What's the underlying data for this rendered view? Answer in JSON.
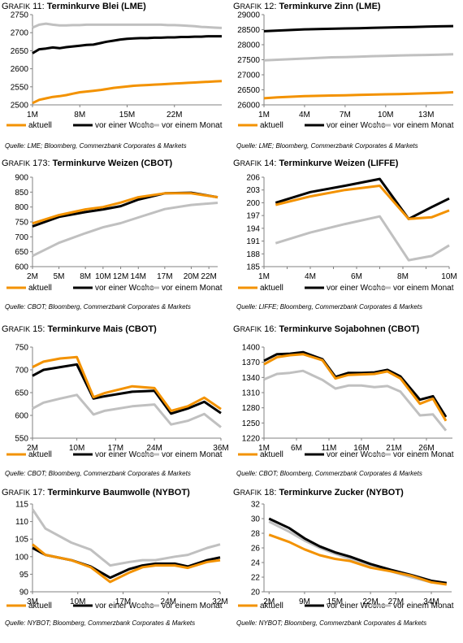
{
  "prefix": "Grafik",
  "legend_labels": [
    "aktuell",
    "vor einer Woche",
    "vor einem Monat"
  ],
  "colors": {
    "aktuell": "#f39200",
    "vor_einer_woche": "#000000",
    "vor_einem_monat": "#c0c0c0",
    "axis": "#808080"
  },
  "panels": [
    {
      "num": "11",
      "title": "Terminkurve Blei (LME)",
      "source": "Quelle: LME; Bloomberg, Commerzbank Corporates & Markets"
    },
    {
      "num": "12",
      "title": "Terminkurve Zinn (LME)",
      "source": "Quelle: LME; Bloomberg, Commerzbank Corporates & Markets"
    },
    {
      "num": "173",
      "title": "Terminkurve Weizen (CBOT)",
      "source": "Quelle: CBOT; Bloomberg, Commerzbank Corporates & Markets"
    },
    {
      "num": "14",
      "title": "Terminkurve Weizen (LIFFE)",
      "source": "Quelle: LIFFE; Bloomberg, Commerzbank Corporates & Markets"
    },
    {
      "num": "15",
      "title": "Terminkurve Mais (CBOT)",
      "source": "Quelle: CBOT; Bloomberg, Commerzbank Corporates & Markets"
    },
    {
      "num": "16",
      "title": "Terminkurve Sojabohnen (CBOT)",
      "source": "Quelle: CBOT; Bloomberg, Commerzbank Corporates & Markets"
    },
    {
      "num": "17",
      "title": "Terminkurve Baumwolle (NYBOT)",
      "source": "Quelle: NYBOT; Bloomberg, Commerzbank Corporates & Markets"
    },
    {
      "num": "18",
      "title": "Terminkurve Zucker (NYBOT)",
      "source": "Quelle: NYBOT; Bloomberg, Commerzbank Corporates & Markets"
    }
  ],
  "chart_data": [
    {
      "type": "line",
      "title": "Terminkurve Blei (LME)",
      "xlim": [
        1,
        29
      ],
      "xticks": [
        1,
        8,
        15,
        22
      ],
      "xticklabels": [
        "1M",
        "8M",
        "15M",
        "22M"
      ],
      "ylim": [
        2500,
        2750
      ],
      "yticks": [
        2500,
        2550,
        2600,
        2650,
        2700,
        2750
      ],
      "series": [
        {
          "name": "aktuell",
          "x": [
            1,
            2,
            3,
            4,
            5,
            6,
            7,
            8,
            9,
            10,
            11,
            12,
            13,
            14,
            15,
            16,
            17,
            18,
            19,
            20,
            21,
            22,
            23,
            24,
            25,
            26,
            27,
            28,
            29
          ],
          "y": [
            2505,
            2514,
            2518,
            2522,
            2524,
            2527,
            2531,
            2535,
            2537,
            2539,
            2541,
            2544,
            2547,
            2549,
            2551,
            2553,
            2554,
            2555,
            2556,
            2557,
            2558,
            2559,
            2560,
            2561,
            2562,
            2563,
            2564,
            2565,
            2566
          ]
        },
        {
          "name": "vor einer Woche",
          "x": [
            1,
            2,
            3,
            4,
            5,
            6,
            7,
            8,
            9,
            10,
            11,
            12,
            13,
            14,
            15,
            16,
            17,
            18,
            19,
            20,
            21,
            22,
            23,
            24,
            25,
            26,
            27,
            28,
            29
          ],
          "y": [
            2643,
            2654,
            2656,
            2659,
            2657,
            2660,
            2662,
            2664,
            2666,
            2667,
            2671,
            2675,
            2678,
            2681,
            2683,
            2684,
            2685,
            2685,
            2686,
            2686,
            2687,
            2687,
            2688,
            2688,
            2689,
            2689,
            2690,
            2690,
            2690
          ]
        },
        {
          "name": "vor einem Monat",
          "x": [
            1,
            2,
            3,
            4,
            5,
            6,
            7,
            8,
            9,
            10,
            11,
            12,
            13,
            14,
            15,
            16,
            17,
            18,
            19,
            20,
            21,
            22,
            23,
            24,
            25,
            26,
            27,
            28,
            29
          ],
          "y": [
            2714,
            2722,
            2725,
            2722,
            2720,
            2720,
            2721,
            2721,
            2722,
            2722,
            2722,
            2722,
            2722,
            2722,
            2722,
            2722,
            2722,
            2722,
            2722,
            2722,
            2721,
            2721,
            2720,
            2719,
            2718,
            2716,
            2715,
            2714,
            2713
          ]
        }
      ]
    },
    {
      "type": "line",
      "title": "Terminkurve Zinn (LME)",
      "xlim": [
        1,
        15
      ],
      "xticks": [
        1,
        4,
        7,
        10,
        13
      ],
      "xticklabels": [
        "1M",
        "4M",
        "7M",
        "10M",
        "13M"
      ],
      "ylim": [
        26000,
        29000
      ],
      "yticks": [
        26000,
        26500,
        27000,
        27500,
        28000,
        28500,
        29000
      ],
      "series": [
        {
          "name": "aktuell",
          "x": [
            1,
            2,
            3,
            4,
            5,
            6,
            7,
            8,
            9,
            10,
            11,
            12,
            13,
            14,
            15
          ],
          "y": [
            26220,
            26250,
            26270,
            26290,
            26300,
            26310,
            26320,
            26330,
            26340,
            26350,
            26360,
            26370,
            26385,
            26400,
            26420
          ]
        },
        {
          "name": "vor einer Woche",
          "x": [
            1,
            2,
            3,
            4,
            5,
            6,
            7,
            8,
            9,
            10,
            11,
            12,
            13,
            14,
            15
          ],
          "y": [
            28450,
            28470,
            28490,
            28510,
            28520,
            28530,
            28540,
            28550,
            28560,
            28570,
            28580,
            28590,
            28600,
            28610,
            28620
          ]
        },
        {
          "name": "vor einem Monat",
          "x": [
            1,
            2,
            3,
            4,
            5,
            6,
            7,
            8,
            9,
            10,
            11,
            12,
            13,
            14,
            15
          ],
          "y": [
            27480,
            27500,
            27520,
            27540,
            27560,
            27580,
            27590,
            27600,
            27620,
            27630,
            27640,
            27650,
            27660,
            27670,
            27680
          ]
        }
      ]
    },
    {
      "type": "line",
      "title": "Terminkurve Weizen (CBOT)",
      "xlim": [
        2,
        23
      ],
      "xticks": [
        2,
        5,
        8,
        10,
        12,
        14,
        17,
        20,
        22
      ],
      "xticklabels": [
        "2M",
        "5M",
        "8M",
        "10M",
        "12M",
        "14M",
        "17M",
        "20M",
        "22M"
      ],
      "ylim": [
        600,
        900
      ],
      "yticks": [
        600,
        650,
        700,
        750,
        800,
        850,
        900
      ],
      "series": [
        {
          "name": "aktuell",
          "x": [
            2,
            5,
            8,
            10,
            12,
            14,
            17,
            20,
            23
          ],
          "y": [
            745,
            773,
            792,
            800,
            815,
            833,
            846,
            846,
            833
          ]
        },
        {
          "name": "vor einer Woche",
          "x": [
            2,
            5,
            8,
            10,
            12,
            14,
            17,
            20,
            23
          ],
          "y": [
            735,
            767,
            783,
            792,
            803,
            825,
            846,
            848,
            833
          ]
        },
        {
          "name": "vor einem Monat",
          "x": [
            2,
            5,
            8,
            10,
            12,
            14,
            17,
            20,
            23
          ],
          "y": [
            636,
            680,
            712,
            732,
            746,
            765,
            793,
            807,
            814
          ]
        }
      ]
    },
    {
      "type": "line",
      "title": "Terminkurve Weizen (LIFFE)",
      "xlim": [
        0,
        16
      ],
      "xticks": [
        0,
        2,
        4,
        6,
        8,
        10,
        12,
        14,
        16
      ],
      "xticklabels": [
        "1M",
        "",
        "4M",
        "",
        "6M",
        "",
        "8M",
        "",
        "10M"
      ],
      "ylim": [
        185,
        206
      ],
      "yticks": [
        185,
        188,
        191,
        194,
        197,
        200,
        203,
        206
      ],
      "series": [
        {
          "name": "aktuell",
          "x": [
            1,
            4,
            7,
            10,
            12.5,
            14.5,
            16
          ],
          "y": [
            199.5,
            201.5,
            203,
            204,
            196.2,
            196.6,
            198.2
          ]
        },
        {
          "name": "vor einer Woche",
          "x": [
            1,
            4,
            7,
            10,
            12.5,
            14.5,
            16
          ],
          "y": [
            200,
            202.5,
            204,
            205.6,
            196.2,
            199,
            201
          ]
        },
        {
          "name": "vor einem Monat",
          "x": [
            1,
            4,
            7,
            10,
            12.5,
            14.5,
            16
          ],
          "y": [
            190.5,
            193,
            195,
            196.8,
            186.5,
            187.5,
            190
          ]
        }
      ]
    },
    {
      "type": "line",
      "title": "Terminkurve Mais (CBOT)",
      "xlim": [
        2,
        36
      ],
      "xticks": [
        2,
        10,
        17,
        24,
        36
      ],
      "xticklabels": [
        "2M",
        "10M",
        "17M",
        "24M",
        "36M"
      ],
      "ylim": [
        550,
        750
      ],
      "yticks": [
        550,
        600,
        650,
        700,
        750
      ],
      "series": [
        {
          "name": "aktuell",
          "x": [
            2,
            4,
            7,
            10,
            13,
            15,
            20,
            24,
            27,
            30,
            33,
            36
          ],
          "y": [
            706,
            718,
            725,
            728,
            640,
            649,
            664,
            660,
            610,
            620,
            639,
            614
          ]
        },
        {
          "name": "vor einer Woche",
          "x": [
            2,
            4,
            7,
            10,
            13,
            15,
            20,
            24,
            27,
            30,
            33,
            36
          ],
          "y": [
            687,
            700,
            706,
            712,
            637,
            642,
            652,
            654,
            604,
            615,
            630,
            605
          ]
        },
        {
          "name": "vor einem Monat",
          "x": [
            2,
            4,
            7,
            10,
            13,
            15,
            20,
            24,
            27,
            30,
            33,
            36
          ],
          "y": [
            615,
            628,
            637,
            645,
            602,
            610,
            620,
            624,
            580,
            588,
            603,
            574
          ]
        }
      ]
    },
    {
      "type": "line",
      "title": "Terminkurve Sojabohnen (CBOT)",
      "xlim": [
        1,
        30
      ],
      "xticks": [
        1,
        6,
        11,
        16,
        21,
        26
      ],
      "xticklabels": [
        "1M",
        "6M",
        "11M",
        "16M",
        "21M",
        "26M"
      ],
      "ylim": [
        1220,
        1400
      ],
      "yticks": [
        1220,
        1250,
        1280,
        1310,
        1340,
        1370,
        1400
      ],
      "series": [
        {
          "name": "aktuell",
          "x": [
            1,
            3,
            5,
            7,
            10,
            12,
            14,
            16,
            18,
            20,
            22,
            25,
            27,
            29
          ],
          "y": [
            1366,
            1380,
            1384,
            1386,
            1374,
            1338,
            1345,
            1346,
            1347,
            1352,
            1338,
            1288,
            1298,
            1254
          ]
        },
        {
          "name": "vor einer Woche",
          "x": [
            1,
            3,
            5,
            7,
            10,
            12,
            14,
            16,
            18,
            20,
            22,
            25,
            27,
            29
          ],
          "y": [
            1373,
            1386,
            1387,
            1390,
            1376,
            1341,
            1349,
            1349,
            1350,
            1355,
            1342,
            1296,
            1303,
            1262
          ]
        },
        {
          "name": "vor einem Monat",
          "x": [
            1,
            3,
            5,
            7,
            10,
            12,
            14,
            16,
            18,
            20,
            22,
            25,
            27,
            29
          ],
          "y": [
            1336,
            1347,
            1349,
            1353,
            1335,
            1318,
            1324,
            1324,
            1321,
            1323,
            1312,
            1265,
            1267,
            1235
          ]
        }
      ]
    },
    {
      "type": "line",
      "title": "Terminkurve Baumwolle (NYBOT)",
      "xlim": [
        3,
        32
      ],
      "xticks": [
        3,
        10,
        17,
        24,
        32
      ],
      "xticklabels": [
        "3M",
        "10M",
        "17M",
        "24M",
        "32M"
      ],
      "ylim": [
        90,
        115
      ],
      "yticks": [
        90,
        95,
        100,
        105,
        110,
        115
      ],
      "series": [
        {
          "name": "aktuell",
          "x": [
            3,
            5,
            9,
            12,
            15,
            18,
            20,
            22,
            25,
            27,
            30,
            32
          ],
          "y": [
            103.5,
            100.5,
            99,
            97,
            92.8,
            95.5,
            97,
            97.5,
            97.5,
            96.8,
            98.5,
            99
          ]
        },
        {
          "name": "vor einer Woche",
          "x": [
            3,
            5,
            9,
            12,
            15,
            18,
            20,
            22,
            25,
            27,
            30,
            32
          ],
          "y": [
            102.5,
            100.5,
            99,
            97.2,
            94,
            96.5,
            97.5,
            98,
            98,
            97.2,
            99,
            99.8
          ]
        },
        {
          "name": "vor einem Monat",
          "x": [
            3,
            5,
            9,
            12,
            15,
            18,
            20,
            22,
            25,
            27,
            30,
            32
          ],
          "y": [
            113.5,
            108,
            104,
            102,
            97.5,
            98.5,
            99,
            99,
            100,
            100.5,
            102.5,
            103.5
          ]
        }
      ]
    },
    {
      "type": "line",
      "title": "Terminkurve Zucker (NYBOT)",
      "xlim": [
        1,
        38
      ],
      "xticks": [
        2,
        9,
        15,
        22,
        27,
        34
      ],
      "xticklabels": [
        "2M",
        "9M",
        "15M",
        "22M",
        "27M",
        "34M"
      ],
      "ylim": [
        20,
        32
      ],
      "yticks": [
        20,
        22,
        24,
        26,
        28,
        30,
        32
      ],
      "series": [
        {
          "name": "aktuell",
          "x": [
            2,
            6,
            9,
            12,
            15,
            18,
            22,
            26,
            30,
            34,
            37
          ],
          "y": [
            27.8,
            26.8,
            25.8,
            25,
            24.5,
            24.2,
            23.3,
            22.8,
            22.2,
            21.3,
            21
          ]
        },
        {
          "name": "vor einer Woche",
          "x": [
            2,
            6,
            9,
            12,
            15,
            18,
            22,
            26,
            30,
            34,
            37
          ],
          "y": [
            30,
            28.7,
            27.3,
            26.2,
            25.4,
            24.8,
            23.8,
            23,
            22.3,
            21.5,
            21.2
          ]
        },
        {
          "name": "vor einem Monat",
          "x": [
            2,
            6,
            9,
            12,
            15,
            18,
            22,
            26,
            30,
            34,
            37
          ],
          "y": [
            29.6,
            28.2,
            27,
            26,
            25.2,
            24.5,
            23.6,
            22.8,
            22,
            21.3,
            21.1
          ]
        }
      ]
    }
  ]
}
